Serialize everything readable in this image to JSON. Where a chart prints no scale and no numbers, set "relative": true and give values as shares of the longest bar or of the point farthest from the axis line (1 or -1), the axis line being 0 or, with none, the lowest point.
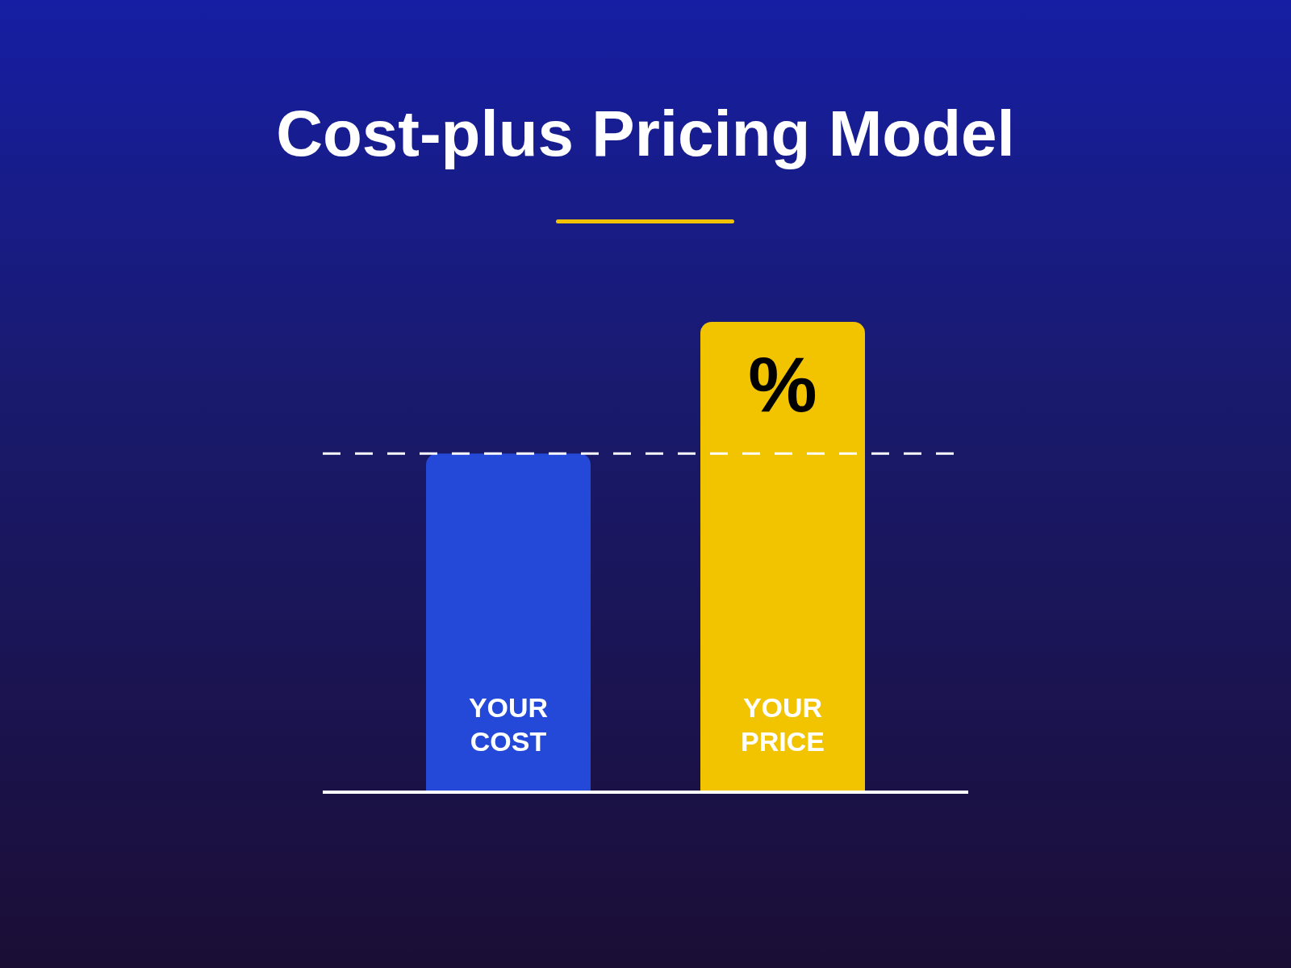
{
  "chart_data": {
    "type": "bar",
    "title": "Cost-plus Pricing Model",
    "relative": true,
    "categories": [
      "YOUR COST",
      "YOUR PRICE"
    ],
    "values": [
      0.72,
      1
    ],
    "colors": [
      "#2449d8",
      "#f2c400"
    ],
    "ref_lines": [
      {
        "axis": "y",
        "value": 0.72,
        "color": "#ffffff",
        "line_style": "dashed"
      }
    ],
    "annotations": [
      "%"
    ]
  }
}
